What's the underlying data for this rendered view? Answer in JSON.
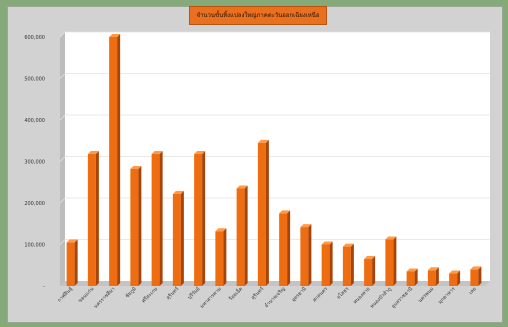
{
  "chart_data": {
    "type": "bar",
    "title": "จำนวนขั้นทิ้งแปลงใหญ่ภาคตะวันออกเฉียงเหนือ",
    "xlabel": "",
    "ylabel": "",
    "ylim": [
      0,
      600000
    ],
    "yticks": [
      0,
      100000,
      200000,
      300000,
      400000,
      500000,
      600000
    ],
    "ytick_labels": [
      "-",
      "100,000",
      "200,000",
      "300,000",
      "400,000",
      "500,000",
      "600,000"
    ],
    "grid": true,
    "legend": "none",
    "categories": [
      "กาฬสินธุ์",
      "ขอนแก่น",
      "นครราชสีมา",
      "ชัยภูมิ",
      "ศรีสะเกษ",
      "สุรินทร์",
      "บุรีรัมย์",
      "มหาสารคาม",
      "ร้อยเอ็ด",
      "สุรินทร์",
      "อำนาจเจริญ",
      "อุดรธานี",
      "สกลนคร",
      "ยโสธร",
      "หนองคาย",
      "หนองบัวลำภู",
      "อุบลราชธานี",
      "นครพนม",
      "มุกดาหาร",
      "เลย"
    ],
    "values": [
      105000,
      318000,
      600000,
      282000,
      318000,
      222000,
      318000,
      132000,
      235000,
      345000,
      175000,
      142000,
      100000,
      95000,
      65000,
      112000,
      35000,
      38000,
      30000,
      40000
    ],
    "colors": {
      "bar": "#ee6d10",
      "bar_dark": "#a8440a",
      "bar_light": "#ff9a4a",
      "plot_bg": "#ffffff",
      "frame_bg": "#d2d2d2",
      "page_bg": "#86a97a",
      "title_bg": "#e8701e"
    }
  }
}
